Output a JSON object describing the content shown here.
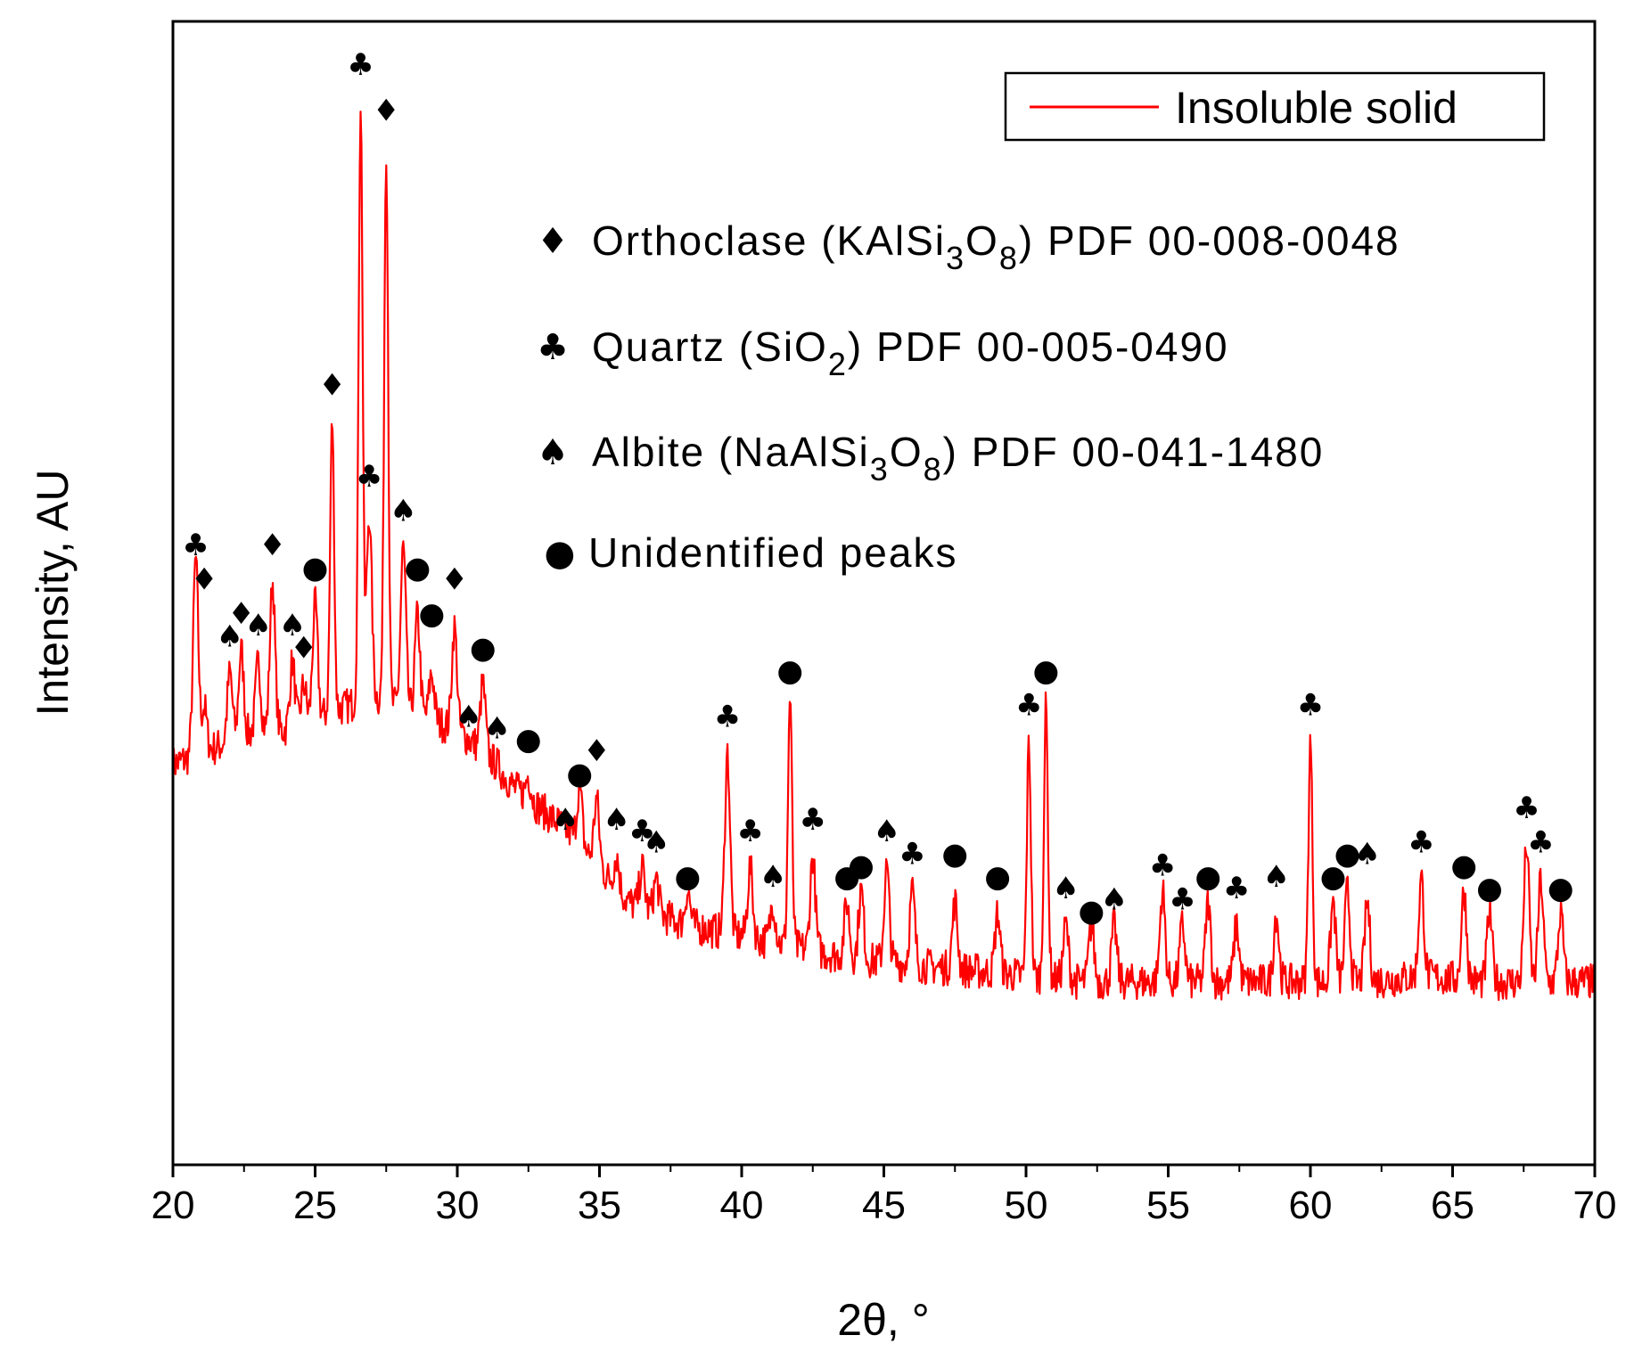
{
  "chart_data": {
    "type": "line",
    "title": "",
    "xlabel": "2θ, °",
    "ylabel": "Intensity, AU",
    "xlim": [
      20,
      70
    ],
    "ylim": [
      0,
      100
    ],
    "x_ticks": [
      "20",
      "25",
      "30",
      "35",
      "40",
      "45",
      "50",
      "55",
      "60",
      "65",
      "70"
    ],
    "y_ticks_labeled": false,
    "legend": {
      "position": "top-right",
      "label": "Insoluble solid",
      "color": "#ff0000"
    },
    "series": [
      {
        "name": "Insoluble solid",
        "color": "#ff0000",
        "baseline": [
          [
            20,
            35
          ],
          [
            21,
            36
          ],
          [
            22,
            37
          ],
          [
            23,
            38
          ],
          [
            24,
            38
          ],
          [
            25,
            39
          ],
          [
            26,
            40
          ],
          [
            27,
            41
          ],
          [
            28,
            40
          ],
          [
            29,
            39
          ],
          [
            30,
            38
          ],
          [
            31,
            36
          ],
          [
            32,
            33
          ],
          [
            33,
            31
          ],
          [
            34,
            29
          ],
          [
            35,
            26
          ],
          [
            36,
            23
          ],
          [
            38,
            21
          ],
          [
            40,
            20
          ],
          [
            42,
            19
          ],
          [
            44,
            18
          ],
          [
            46,
            17.5
          ],
          [
            48,
            17
          ],
          [
            50,
            16.5
          ],
          [
            52,
            16
          ],
          [
            55,
            16
          ],
          [
            58,
            16
          ],
          [
            60,
            16
          ],
          [
            62,
            16
          ],
          [
            64,
            16.5
          ],
          [
            66,
            16
          ],
          [
            68,
            16
          ],
          [
            70,
            16
          ]
        ],
        "peaks": [
          [
            20.8,
            53
          ],
          [
            21.1,
            40
          ],
          [
            22.0,
            43
          ],
          [
            22.4,
            45
          ],
          [
            23.0,
            44
          ],
          [
            23.5,
            51
          ],
          [
            24.2,
            44
          ],
          [
            24.6,
            42
          ],
          [
            25.0,
            49
          ],
          [
            25.6,
            65
          ],
          [
            26.6,
            93
          ],
          [
            26.9,
            57
          ],
          [
            27.5,
            89
          ],
          [
            28.1,
            54
          ],
          [
            28.6,
            48
          ],
          [
            29.1,
            43
          ],
          [
            29.9,
            47
          ],
          [
            30.4,
            36
          ],
          [
            30.9,
            42
          ],
          [
            31.4,
            35
          ],
          [
            32.5,
            34
          ],
          [
            33.8,
            26
          ],
          [
            34.3,
            33
          ],
          [
            34.9,
            32
          ],
          [
            35.6,
            27
          ],
          [
            36.5,
            26
          ],
          [
            37.0,
            25
          ],
          [
            38.1,
            24
          ],
          [
            39.5,
            36
          ],
          [
            40.3,
            26
          ],
          [
            41.1,
            23
          ],
          [
            41.7,
            41
          ],
          [
            42.5,
            27
          ],
          [
            43.7,
            23
          ],
          [
            44.2,
            24
          ],
          [
            45.1,
            26
          ],
          [
            46.0,
            24
          ],
          [
            47.5,
            23
          ],
          [
            49.0,
            22
          ],
          [
            50.1,
            37
          ],
          [
            50.7,
            40
          ],
          [
            51.4,
            21
          ],
          [
            52.3,
            21
          ],
          [
            53.1,
            21
          ],
          [
            54.8,
            24
          ],
          [
            55.5,
            21
          ],
          [
            56.4,
            23
          ],
          [
            57.4,
            21
          ],
          [
            58.8,
            22
          ],
          [
            60.0,
            37
          ],
          [
            60.8,
            23
          ],
          [
            61.3,
            24
          ],
          [
            62.0,
            23
          ],
          [
            63.9,
            25
          ],
          [
            65.4,
            24
          ],
          [
            66.3,
            22
          ],
          [
            67.6,
            28
          ],
          [
            68.1,
            25
          ],
          [
            68.8,
            22
          ]
        ]
      }
    ],
    "phases": [
      {
        "symbol": "♦",
        "name": "Orthoclase",
        "pre": "Orthoclase (KAlSi",
        "s1": "3",
        "mid": "O",
        "s2": "8",
        "post": ") PDF 00-008-0048"
      },
      {
        "symbol": "♣",
        "name": "Quartz",
        "pre": "Quartz (SiO",
        "s1": "2",
        "mid": "",
        "s2": "",
        "post": ") PDF 00-005-0490"
      },
      {
        "symbol": "♠",
        "name": "Albite",
        "pre": "Albite (NaAlSi",
        "s1": "3",
        "mid": "O",
        "s2": "8",
        "post": ") PDF 00-041-1480"
      },
      {
        "symbol": "●",
        "name": "Unidentified",
        "pre": "Unidentified peaks",
        "s1": "",
        "mid": "",
        "s2": "",
        "post": ""
      }
    ],
    "annotations": [
      {
        "x": 20.8,
        "y": 53,
        "phase": "♣"
      },
      {
        "x": 21.1,
        "y": 50,
        "phase": "♦"
      },
      {
        "x": 22.0,
        "y": 45,
        "phase": "♠"
      },
      {
        "x": 22.4,
        "y": 47,
        "phase": "♦"
      },
      {
        "x": 23.0,
        "y": 46,
        "phase": "♠"
      },
      {
        "x": 23.5,
        "y": 53,
        "phase": "♦"
      },
      {
        "x": 24.2,
        "y": 46,
        "phase": "♠"
      },
      {
        "x": 24.6,
        "y": 44,
        "phase": "♦"
      },
      {
        "x": 25.0,
        "y": 51,
        "phase": "●"
      },
      {
        "x": 25.6,
        "y": 67,
        "phase": "♦"
      },
      {
        "x": 26.6,
        "y": 95,
        "phase": "♣"
      },
      {
        "x": 26.9,
        "y": 59,
        "phase": "♣"
      },
      {
        "x": 27.5,
        "y": 91,
        "phase": "♦"
      },
      {
        "x": 28.1,
        "y": 56,
        "phase": "♠"
      },
      {
        "x": 28.6,
        "y": 51,
        "phase": "●"
      },
      {
        "x": 29.1,
        "y": 47,
        "phase": "●"
      },
      {
        "x": 29.9,
        "y": 50,
        "phase": "♦"
      },
      {
        "x": 30.4,
        "y": 38,
        "phase": "♠"
      },
      {
        "x": 30.9,
        "y": 44,
        "phase": "●"
      },
      {
        "x": 31.4,
        "y": 37,
        "phase": "♠"
      },
      {
        "x": 32.5,
        "y": 36,
        "phase": "●"
      },
      {
        "x": 33.8,
        "y": 29,
        "phase": "♠"
      },
      {
        "x": 34.3,
        "y": 33,
        "phase": "●"
      },
      {
        "x": 34.9,
        "y": 35,
        "phase": "♦"
      },
      {
        "x": 35.6,
        "y": 29,
        "phase": "♠"
      },
      {
        "x": 36.5,
        "y": 28,
        "phase": "♣"
      },
      {
        "x": 37.0,
        "y": 27,
        "phase": "♠"
      },
      {
        "x": 38.1,
        "y": 24,
        "phase": "●"
      },
      {
        "x": 39.5,
        "y": 38,
        "phase": "♣"
      },
      {
        "x": 40.3,
        "y": 28,
        "phase": "♣"
      },
      {
        "x": 41.1,
        "y": 24,
        "phase": "♠"
      },
      {
        "x": 41.7,
        "y": 42,
        "phase": "●"
      },
      {
        "x": 42.5,
        "y": 29,
        "phase": "♣"
      },
      {
        "x": 43.7,
        "y": 24,
        "phase": "●"
      },
      {
        "x": 44.2,
        "y": 25,
        "phase": "●"
      },
      {
        "x": 45.1,
        "y": 28,
        "phase": "♠"
      },
      {
        "x": 46.0,
        "y": 26,
        "phase": "♣"
      },
      {
        "x": 47.5,
        "y": 26,
        "phase": "●"
      },
      {
        "x": 49.0,
        "y": 24,
        "phase": "●"
      },
      {
        "x": 50.1,
        "y": 39,
        "phase": "♣"
      },
      {
        "x": 50.7,
        "y": 42,
        "phase": "●"
      },
      {
        "x": 51.4,
        "y": 23,
        "phase": "♠"
      },
      {
        "x": 52.3,
        "y": 21,
        "phase": "●"
      },
      {
        "x": 53.1,
        "y": 22,
        "phase": "♠"
      },
      {
        "x": 54.8,
        "y": 25,
        "phase": "♣"
      },
      {
        "x": 55.5,
        "y": 22,
        "phase": "♣"
      },
      {
        "x": 56.4,
        "y": 24,
        "phase": "●"
      },
      {
        "x": 57.4,
        "y": 23,
        "phase": "♣"
      },
      {
        "x": 58.8,
        "y": 24,
        "phase": "♠"
      },
      {
        "x": 60.0,
        "y": 39,
        "phase": "♣"
      },
      {
        "x": 60.8,
        "y": 24,
        "phase": "●"
      },
      {
        "x": 61.3,
        "y": 26,
        "phase": "●"
      },
      {
        "x": 62.0,
        "y": 26,
        "phase": "♠"
      },
      {
        "x": 63.9,
        "y": 27,
        "phase": "♣"
      },
      {
        "x": 65.4,
        "y": 25,
        "phase": "●"
      },
      {
        "x": 66.3,
        "y": 23,
        "phase": "●"
      },
      {
        "x": 67.6,
        "y": 30,
        "phase": "♣"
      },
      {
        "x": 68.1,
        "y": 27,
        "phase": "♣"
      },
      {
        "x": 68.8,
        "y": 23,
        "phase": "●"
      }
    ]
  }
}
